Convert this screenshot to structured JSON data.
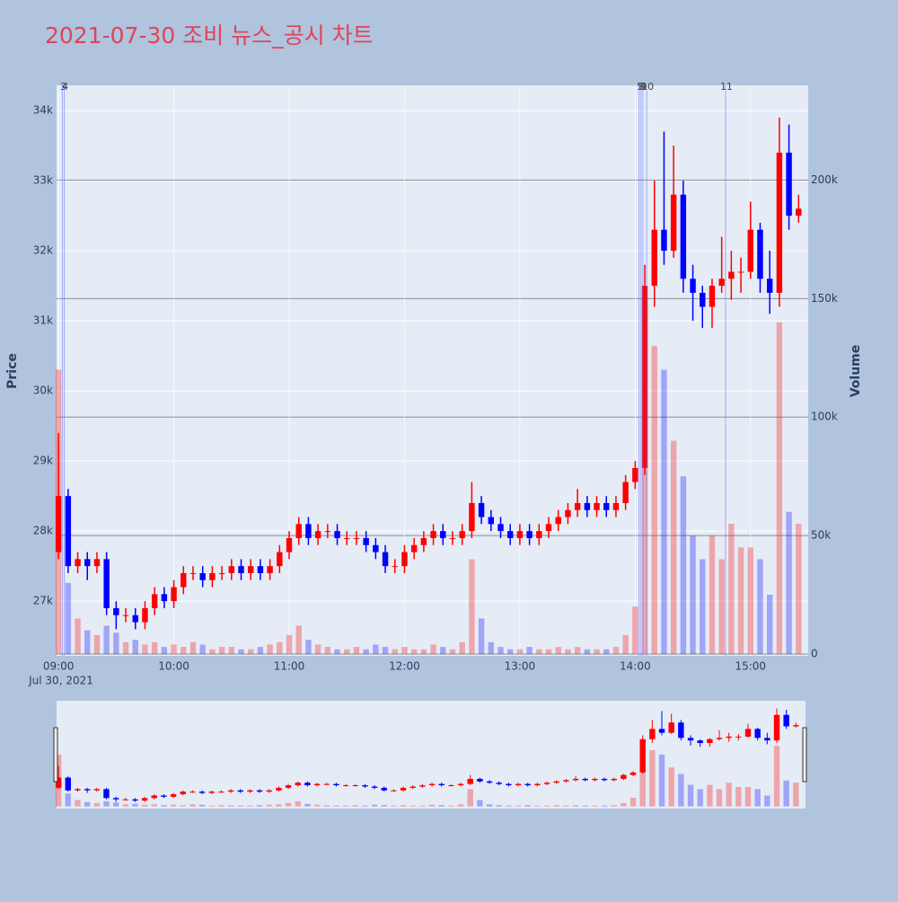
{
  "chart_data": {
    "type": "candlestick",
    "title": "2021-07-30 조비 뉴스_공시 차트",
    "y_label": "Price",
    "y2_label": "Volume",
    "x_date_label": "Jul 30, 2021",
    "increasing_color": "#ff0000",
    "decreasing_color": "#0000ff",
    "x": [
      "09:00",
      "09:05",
      "09:10",
      "09:15",
      "09:20",
      "09:25",
      "09:30",
      "09:35",
      "09:40",
      "09:45",
      "09:50",
      "09:55",
      "10:00",
      "10:05",
      "10:10",
      "10:15",
      "10:20",
      "10:25",
      "10:30",
      "10:35",
      "10:40",
      "10:45",
      "10:50",
      "10:55",
      "11:00",
      "11:05",
      "11:10",
      "11:15",
      "11:20",
      "11:25",
      "11:30",
      "11:35",
      "11:40",
      "11:45",
      "11:50",
      "11:55",
      "12:00",
      "12:05",
      "12:10",
      "12:15",
      "12:20",
      "12:25",
      "12:30",
      "12:35",
      "12:40",
      "12:45",
      "12:50",
      "12:55",
      "13:00",
      "13:05",
      "13:10",
      "13:15",
      "13:20",
      "13:25",
      "13:30",
      "13:35",
      "13:40",
      "13:45",
      "13:50",
      "13:55",
      "14:00",
      "14:05",
      "14:10",
      "14:15",
      "14:20",
      "14:25",
      "14:30",
      "14:35",
      "14:40",
      "14:45",
      "14:50",
      "14:55",
      "15:00",
      "15:05",
      "15:10",
      "15:15",
      "15:20",
      "15:25"
    ],
    "open": [
      27700,
      28500,
      27500,
      27600,
      27500,
      27600,
      26900,
      26800,
      26800,
      26700,
      26900,
      27100,
      27000,
      27200,
      27400,
      27400,
      27300,
      27400,
      27400,
      27500,
      27400,
      27500,
      27400,
      27500,
      27700,
      27900,
      28100,
      27900,
      28000,
      28000,
      27900,
      27900,
      27900,
      27800,
      27700,
      27500,
      27500,
      27700,
      27800,
      27900,
      28000,
      27900,
      27900,
      28000,
      28400,
      28200,
      28100,
      28000,
      27900,
      28000,
      27900,
      28000,
      28100,
      28200,
      28300,
      28400,
      28300,
      28400,
      28300,
      28400,
      28700,
      28900,
      31500,
      32300,
      32000,
      32800,
      31600,
      31400,
      31200,
      31500,
      31600,
      31700,
      31700,
      32300,
      31600,
      31400,
      33400,
      32500
    ],
    "high": [
      29400,
      28600,
      27700,
      27700,
      27700,
      27700,
      27000,
      26900,
      26900,
      27000,
      27200,
      27200,
      27300,
      27500,
      27500,
      27500,
      27500,
      27500,
      27600,
      27600,
      27600,
      27600,
      27600,
      27800,
      28000,
      28200,
      28200,
      28100,
      28100,
      28100,
      28000,
      28000,
      28000,
      27900,
      27800,
      27600,
      27800,
      27900,
      28000,
      28100,
      28100,
      28000,
      28100,
      28700,
      28500,
      28300,
      28200,
      28100,
      28100,
      28100,
      28100,
      28200,
      28300,
      28400,
      28600,
      28500,
      28500,
      28500,
      28500,
      28800,
      29000,
      31800,
      33000,
      33700,
      33500,
      33000,
      31800,
      31500,
      31600,
      32200,
      32000,
      31900,
      32700,
      32400,
      32000,
      33900,
      33800,
      32800
    ],
    "low": [
      27600,
      27400,
      27400,
      27300,
      27400,
      26800,
      26600,
      26700,
      26600,
      26600,
      26800,
      26900,
      26900,
      27100,
      27300,
      27200,
      27200,
      27300,
      27300,
      27300,
      27300,
      27300,
      27300,
      27400,
      27600,
      27800,
      27800,
      27800,
      27900,
      27800,
      27800,
      27800,
      27700,
      27600,
      27400,
      27400,
      27400,
      27600,
      27700,
      27800,
      27800,
      27800,
      27800,
      27900,
      28100,
      28000,
      27900,
      27800,
      27800,
      27800,
      27800,
      27900,
      28000,
      28100,
      28200,
      28200,
      28200,
      28200,
      28200,
      28300,
      28600,
      28800,
      31200,
      31800,
      31900,
      31400,
      31000,
      30900,
      30900,
      31400,
      31300,
      31400,
      31600,
      31400,
      31100,
      31200,
      32300,
      32400
    ],
    "close": [
      28500,
      27500,
      27600,
      27500,
      27600,
      26900,
      26800,
      26800,
      26700,
      26900,
      27100,
      27000,
      27200,
      27400,
      27400,
      27300,
      27400,
      27400,
      27500,
      27400,
      27500,
      27400,
      27500,
      27700,
      27900,
      28100,
      27900,
      28000,
      28000,
      27900,
      27900,
      27900,
      27800,
      27700,
      27500,
      27500,
      27700,
      27800,
      27900,
      28000,
      27900,
      27900,
      28000,
      28400,
      28200,
      28100,
      28000,
      27900,
      28000,
      27900,
      28000,
      28100,
      28200,
      28300,
      28400,
      28300,
      28400,
      28300,
      28400,
      28700,
      28900,
      31500,
      32300,
      32000,
      32800,
      31600,
      31400,
      31200,
      31500,
      31600,
      31700,
      31700,
      32300,
      31600,
      31400,
      33400,
      32500,
      32600
    ],
    "volume": [
      120000,
      30000,
      15000,
      10000,
      8000,
      12000,
      9000,
      5000,
      6000,
      4000,
      5000,
      3000,
      4000,
      3000,
      5000,
      4000,
      2000,
      3000,
      3000,
      2000,
      2000,
      3000,
      4000,
      5000,
      8000,
      12000,
      6000,
      4000,
      3000,
      2000,
      2000,
      3000,
      2000,
      4000,
      3000,
      2000,
      3000,
      2000,
      2000,
      4000,
      3000,
      2000,
      5000,
      40000,
      15000,
      5000,
      3000,
      2000,
      2000,
      3000,
      2000,
      2000,
      3000,
      2000,
      3000,
      2000,
      2000,
      2000,
      3000,
      8000,
      20000,
      150000,
      130000,
      120000,
      90000,
      75000,
      50000,
      40000,
      50000,
      40000,
      55000,
      45000,
      45000,
      40000,
      25000,
      140000,
      60000,
      55000
    ],
    "annotations": [
      {
        "x": "09:02",
        "label": "3"
      },
      {
        "x": "09:03",
        "label": "4"
      },
      {
        "x": "14:02",
        "label": "5"
      },
      {
        "x": "14:03",
        "label": "8"
      },
      {
        "x": "14:04",
        "label": "9"
      },
      {
        "x": "14:06",
        "label": "10"
      },
      {
        "x": "14:47",
        "label": "11"
      }
    ],
    "xlim": [
      "08:59",
      "15:30"
    ],
    "xticks": [
      "09:00",
      "10:00",
      "11:00",
      "12:00",
      "13:00",
      "14:00",
      "15:00"
    ],
    "ylim": [
      26220,
      34360
    ],
    "yticks": [
      {
        "value": 27000,
        "label": "27k"
      },
      {
        "value": 28000,
        "label": "28k"
      },
      {
        "value": 29000,
        "label": "29k"
      },
      {
        "value": 30000,
        "label": "30k"
      },
      {
        "value": 31000,
        "label": "31k"
      },
      {
        "value": 32000,
        "label": "32k"
      },
      {
        "value": 33000,
        "label": "33k"
      },
      {
        "value": 34000,
        "label": "34k"
      }
    ],
    "y2lim": [
      -760,
      240000
    ],
    "y2ticks": [
      0,
      {
        "value": 50000,
        "label": "50k"
      },
      {
        "value": 100000,
        "label": "100k"
      },
      {
        "value": 150000,
        "label": "150k"
      },
      {
        "value": 200000,
        "label": "200k"
      }
    ],
    "grid": true
  }
}
